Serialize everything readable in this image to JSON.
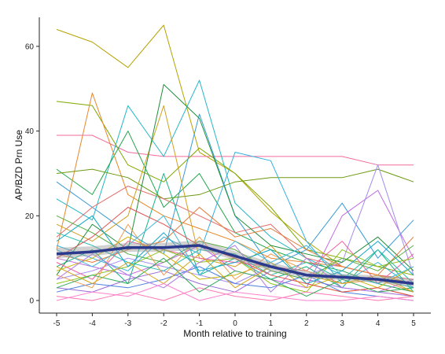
{
  "chart_data": {
    "type": "line",
    "title": "",
    "xlabel": "Month relative to training",
    "ylabel": "AP/BZD Prn Use",
    "x": [
      -5,
      -4,
      -3,
      -2,
      -1,
      0,
      1,
      2,
      3,
      4,
      5
    ],
    "xlim": [
      -5,
      5
    ],
    "ylim": [
      0,
      65
    ],
    "y_ticks": [
      0,
      20,
      40,
      60
    ],
    "grid": false,
    "legend": "none",
    "series": [
      {
        "color": "#b5a200",
        "values": [
          64,
          61,
          55,
          65,
          35,
          30,
          21,
          14,
          8,
          6,
          4
        ]
      },
      {
        "color": "#f26b9c",
        "values": [
          39,
          39,
          35,
          34,
          34,
          34,
          34,
          34,
          34,
          32,
          32
        ]
      },
      {
        "color": "#7fa800",
        "values": [
          47,
          46,
          32,
          28,
          36,
          30,
          22,
          12,
          10,
          8,
          6
        ]
      },
      {
        "color": "#25b7c6",
        "values": [
          24,
          19,
          46,
          34,
          52,
          23,
          15,
          10,
          6,
          5,
          3
        ]
      },
      {
        "color": "#22a64b",
        "values": [
          31,
          25,
          40,
          22,
          30,
          16,
          12,
          9,
          7,
          4,
          2
        ]
      },
      {
        "color": "#e8882a",
        "values": [
          12,
          49,
          25,
          20,
          17,
          14,
          10,
          9,
          8,
          6,
          4
        ]
      },
      {
        "color": "#3a9ad9",
        "values": [
          28,
          22,
          16,
          11,
          44,
          20,
          8,
          12,
          23,
          10,
          19
        ]
      },
      {
        "color": "#c06adf",
        "values": [
          10,
          8,
          6,
          9,
          13,
          7,
          5,
          3,
          20,
          26,
          10
        ]
      },
      {
        "color": "#6b9a10",
        "values": [
          30,
          31,
          29,
          24,
          25,
          28,
          29,
          29,
          29,
          31,
          28
        ]
      },
      {
        "color": "#e46a6a",
        "values": [
          15,
          22,
          27,
          24,
          20,
          16,
          18,
          10,
          8,
          6,
          5
        ]
      },
      {
        "color": "#15b38a",
        "values": [
          8,
          12,
          4,
          30,
          6,
          10,
          5,
          8,
          3,
          12,
          2
        ]
      },
      {
        "color": "#a38cf0",
        "values": [
          5,
          7,
          10,
          8,
          6,
          4,
          8,
          6,
          9,
          32,
          6
        ]
      },
      {
        "color": "#d0a020",
        "values": [
          18,
          14,
          20,
          46,
          10,
          8,
          13,
          4,
          2,
          3,
          1
        ]
      },
      {
        "color": "#1f8f3a",
        "values": [
          6,
          18,
          12,
          51,
          43,
          20,
          13,
          11,
          9,
          15,
          7
        ]
      },
      {
        "color": "#f0609c",
        "values": [
          9,
          5,
          14,
          12,
          10,
          9,
          8,
          7,
          14,
          4,
          11
        ]
      },
      {
        "color": "#31b0e0",
        "values": [
          13,
          10,
          7,
          15,
          11,
          35,
          33,
          14,
          4,
          9,
          3
        ]
      },
      {
        "color": "#8ec21c",
        "values": [
          4,
          6,
          8,
          12,
          9,
          10,
          4,
          2,
          12,
          8,
          10
        ]
      },
      {
        "color": "#e37a3b",
        "values": [
          11,
          9,
          12,
          14,
          22,
          15,
          17,
          12,
          8,
          6,
          15
        ]
      },
      {
        "color": "#9c6ad6",
        "values": [
          3,
          2,
          5,
          7,
          4,
          2,
          7,
          5,
          3,
          2,
          1
        ]
      },
      {
        "color": "#2bbfae",
        "values": [
          16,
          13,
          9,
          7,
          12,
          11,
          6,
          9,
          5,
          12,
          4
        ]
      },
      {
        "color": "#c9b400",
        "values": [
          7,
          10,
          15,
          11,
          5,
          6,
          9,
          3,
          6,
          3,
          8
        ]
      },
      {
        "color": "#4a7ee0",
        "values": [
          2,
          4,
          3,
          5,
          8,
          4,
          3,
          6,
          2,
          1,
          0
        ]
      },
      {
        "color": "#ff77b0",
        "values": [
          1,
          0,
          2,
          0,
          3,
          1,
          0,
          2,
          1,
          0,
          1
        ]
      },
      {
        "color": "#57ad3e",
        "values": [
          20,
          16,
          11,
          9,
          14,
          12,
          7,
          5,
          10,
          7,
          13
        ]
      },
      {
        "color": "#f29b4c",
        "values": [
          6,
          3,
          18,
          6,
          15,
          5,
          11,
          7,
          4,
          5,
          2
        ]
      },
      {
        "color": "#12a7c9",
        "values": [
          14,
          20,
          8,
          16,
          7,
          9,
          12,
          4,
          7,
          14,
          6
        ]
      },
      {
        "color": "#b07ae8",
        "values": [
          5,
          11,
          6,
          3,
          9,
          13,
          2,
          10,
          3,
          2,
          5
        ]
      },
      {
        "color": "#e05050",
        "values": [
          10,
          15,
          22,
          18,
          13,
          10,
          6,
          4,
          2,
          3,
          1
        ]
      },
      {
        "color": "#2eab5a",
        "values": [
          3,
          6,
          4,
          10,
          2,
          7,
          5,
          1,
          5,
          2,
          3
        ]
      },
      {
        "color": "#d4a41a",
        "values": [
          8,
          4,
          9,
          4,
          11,
          3,
          8,
          6,
          4,
          6,
          2
        ]
      },
      {
        "color": "#ff80d0",
        "values": [
          0,
          2,
          1,
          4,
          0,
          2,
          1,
          0,
          0,
          1,
          0
        ]
      },
      {
        "color": "#3fb9d8",
        "values": [
          12,
          8,
          13,
          20,
          6,
          14,
          9,
          13,
          6,
          4,
          8
        ]
      }
    ],
    "trend": {
      "color": "#2b3a8c",
      "values": [
        11,
        11.5,
        12.5,
        12.5,
        13,
        10.5,
        8,
        6,
        5.5,
        5,
        4
      ],
      "band_lower": [
        10,
        10.5,
        11.5,
        11.5,
        12,
        9.5,
        7,
        5.3,
        4.8,
        4.2,
        3.2
      ],
      "band_upper": [
        12.5,
        12.8,
        13.6,
        13.6,
        14.2,
        11.6,
        9,
        6.9,
        6.3,
        5.9,
        5
      ]
    }
  }
}
